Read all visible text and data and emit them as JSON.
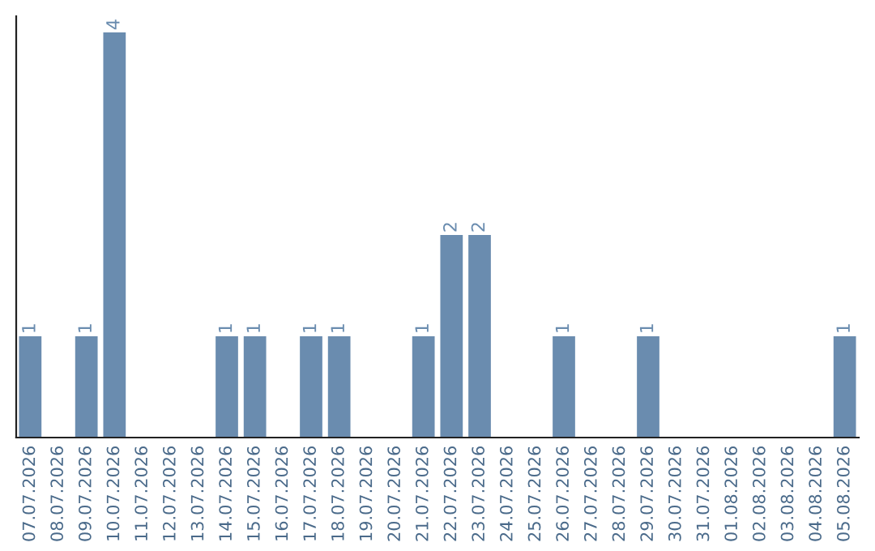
{
  "chart_data": {
    "type": "bar",
    "categories": [
      "07.07.2026",
      "08.07.2026",
      "09.07.2026",
      "10.07.2026",
      "11.07.2026",
      "12.07.2026",
      "13.07.2026",
      "14.07.2026",
      "15.07.2026",
      "16.07.2026",
      "17.07.2026",
      "18.07.2026",
      "19.07.2026",
      "20.07.2026",
      "21.07.2026",
      "22.07.2026",
      "23.07.2026",
      "24.07.2026",
      "25.07.2026",
      "26.07.2026",
      "27.07.2026",
      "28.07.2026",
      "29.07.2026",
      "30.07.2026",
      "31.07.2026",
      "01.08.2026",
      "02.08.2026",
      "03.08.2026",
      "04.08.2026",
      "05.08.2026"
    ],
    "values": [
      1,
      0,
      1,
      4,
      0,
      0,
      0,
      1,
      1,
      0,
      1,
      1,
      0,
      0,
      1,
      2,
      2,
      0,
      0,
      1,
      0,
      0,
      1,
      0,
      0,
      0,
      0,
      0,
      0,
      1
    ],
    "value_labels": [
      "1",
      null,
      "1",
      "4",
      null,
      null,
      null,
      "1",
      "1",
      null,
      "1",
      "1",
      null,
      null,
      "1",
      "2",
      "2",
      null,
      null,
      "1",
      null,
      null,
      "1",
      null,
      null,
      null,
      null,
      null,
      null,
      "1"
    ],
    "color": "#6a8caf",
    "tick_labels": "x",
    "grid": false
  }
}
